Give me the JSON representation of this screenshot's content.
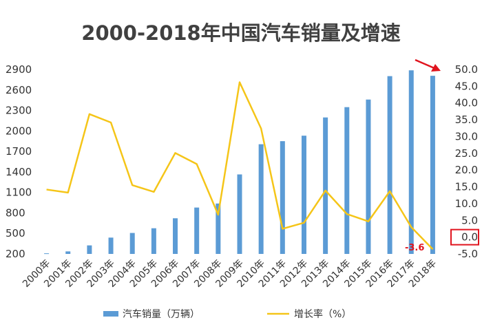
{
  "chart_data": {
    "type": "bar+line",
    "title": "2000-2018年中国汽车销量及增速",
    "categories": [
      "2000年",
      "2001年",
      "2002年",
      "2003年",
      "2004年",
      "2005年",
      "2006年",
      "2007年",
      "2008年",
      "2009年",
      "2010年",
      "2011年",
      "2012年",
      "2013年",
      "2014年",
      "2015年",
      "2016年",
      "2017年",
      "2018年"
    ],
    "series": [
      {
        "name": "汽车销量（万辆）",
        "type": "bar",
        "axis": "left",
        "color": "#5b9bd5",
        "values": [
          209,
          237,
          325,
          439,
          507,
          576,
          722,
          879,
          938,
          1364,
          1806,
          1851,
          1931,
          2198,
          2349,
          2460,
          2803,
          2888,
          2808
        ]
      },
      {
        "name": "增长率（%）",
        "type": "line",
        "axis": "right",
        "color": "#f5c518",
        "values": [
          14.2,
          13.3,
          36.7,
          34.2,
          15.5,
          13.5,
          25.1,
          21.8,
          6.7,
          46.2,
          32.4,
          2.5,
          4.3,
          13.9,
          6.9,
          4.7,
          13.7,
          3.0,
          -3.6
        ]
      }
    ],
    "y_left": {
      "ticks": [
        "200",
        "500",
        "800",
        "1100",
        "1400",
        "1700",
        "2000",
        "2300",
        "2600",
        "2900"
      ],
      "ylim": [
        200,
        2900
      ]
    },
    "y_right": {
      "ticks": [
        "-5.0",
        "0.0",
        "5.0",
        "10.0",
        "15.0",
        "20.0",
        "25.0",
        "30.0",
        "35.0",
        "40.0",
        "45.0",
        "50.0"
      ],
      "ylim": [
        -5,
        50
      ],
      "highlight_tick": "0.0"
    },
    "annotations": [
      {
        "text": "-3.6",
        "series": "增长率（%）",
        "index": 18,
        "color": "#e0141e"
      }
    ],
    "red_arrow": true,
    "legend": {
      "position": "bottom"
    },
    "grid": false
  }
}
